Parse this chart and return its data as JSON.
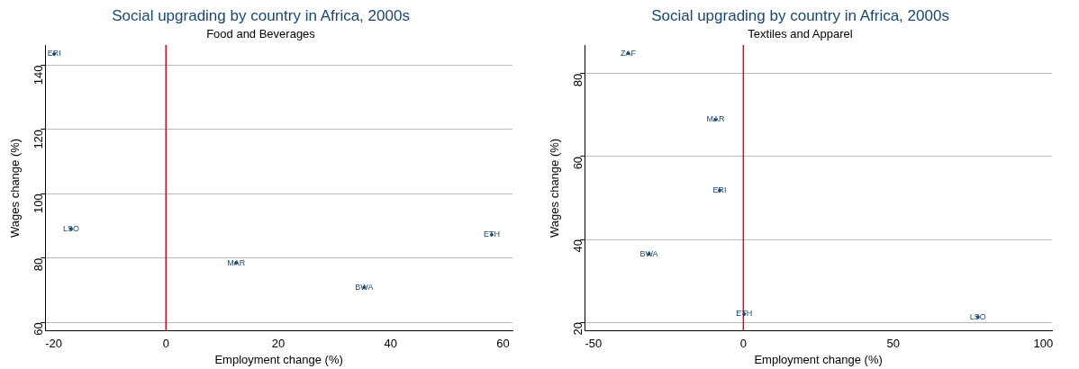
{
  "chart_data": [
    {
      "type": "scatter",
      "title": "Social upgrading by country in Africa, 2000s",
      "subtitle": "Food and Beverages",
      "xlabel": "Employment change (%)",
      "ylabel": "Wages change (%)",
      "series": [
        {
          "color": "#1a476f",
          "x": [
            -19.9,
            -16.9,
            12.5,
            35.3,
            58.0
          ],
          "values": [
            143.5,
            89.1,
            78.5,
            70.9,
            87.3
          ],
          "value_labels": [
            "ERI",
            "LSO",
            "MAR",
            "BWA",
            "ETH"
          ]
        }
      ],
      "grid": "y",
      "xlim": [
        -21.5,
        61.7
      ],
      "ylim": [
        57.3,
        146.3
      ],
      "xticks": [
        -20,
        0,
        20,
        40,
        60
      ],
      "yticks": [
        60,
        80,
        100,
        120,
        140
      ],
      "ref_lines": [
        {
          "axis": "x",
          "value": 0,
          "color": "#c8102e"
        }
      ]
    },
    {
      "type": "scatter",
      "title": "Social upgrading by country in Africa, 2000s",
      "subtitle": "Textiles and Apparel",
      "xlabel": "Employment change (%)",
      "ylabel": "Wages change (%)",
      "series": [
        {
          "color": "#1a476f",
          "x": [
            -38.4,
            -9.3,
            -7.9,
            -31.5,
            0.3,
            78.2
          ],
          "values": [
            84.9,
            68.9,
            51.8,
            36.5,
            22.0,
            21.3
          ],
          "value_labels": [
            "ZAF",
            "MAR",
            "ERI",
            "BWA",
            "ETH",
            "LSO"
          ]
        }
      ],
      "grid": "y",
      "xlim": [
        -52.9,
        102.9
      ],
      "ylim": [
        17.9,
        86.9
      ],
      "xticks": [
        -50,
        0,
        50,
        100
      ],
      "yticks": [
        20,
        40,
        60,
        80
      ],
      "ref_lines": [
        {
          "axis": "x",
          "value": 0,
          "color": "#c8102e"
        }
      ]
    }
  ]
}
